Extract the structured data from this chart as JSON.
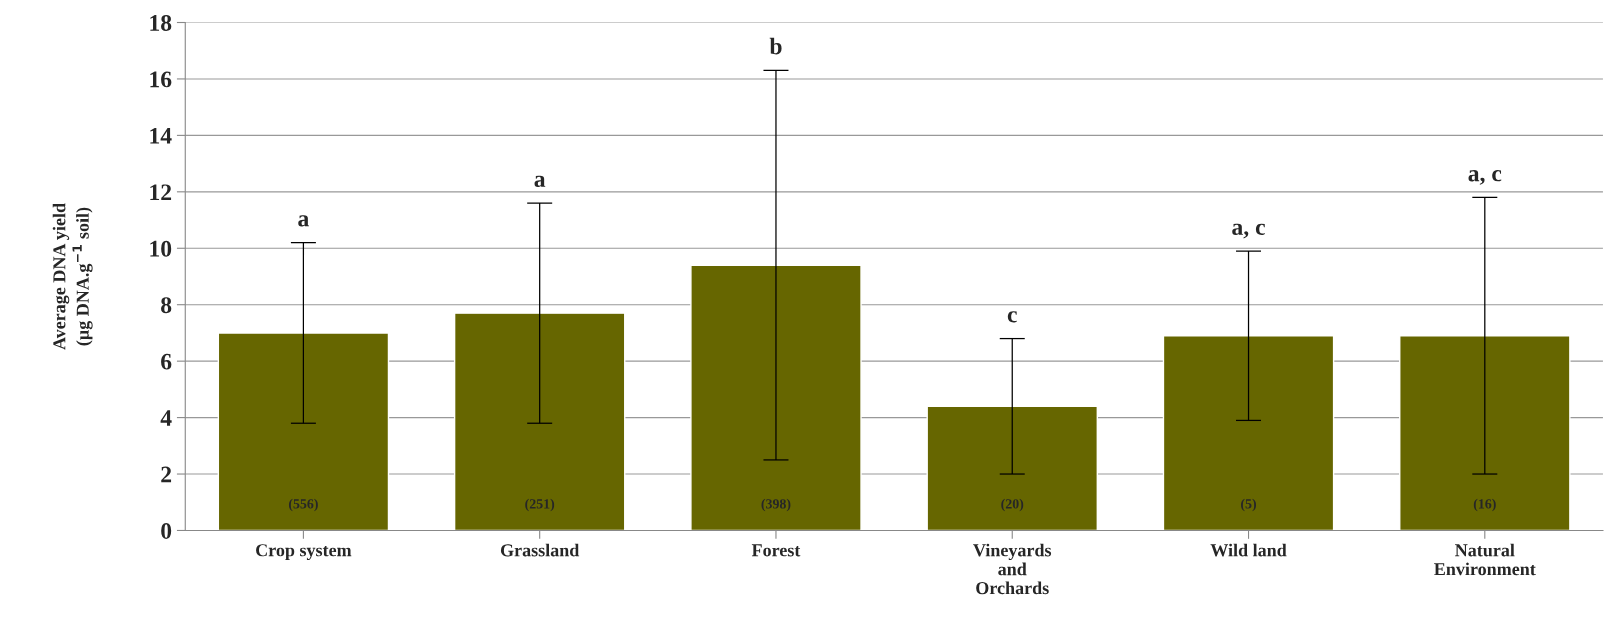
{
  "chart_data": {
    "type": "bar",
    "ylabel": "Average DNA yield\n(µg DNA.g$^{−1}$ soil)",
    "categories": [
      "Crop system",
      "Grassland",
      "Forest",
      "Vineyards\nand\nOrchards",
      "Wild land",
      "Natural\nEnvironment"
    ],
    "series": [
      {
        "color": "#666600",
        "values": [
          7.0,
          7.7,
          9.4,
          4.4,
          6.9,
          6.9
        ],
        "errors": [
          3.2,
          3.9,
          6.9,
          2.4,
          3.0,
          4.9
        ]
      }
    ],
    "ylim": [
      0,
      18
    ],
    "yticks": [
      0,
      2,
      4,
      6,
      8,
      10,
      12,
      14,
      16,
      18
    ],
    "grid": "y",
    "legend": false,
    "annotations": [
      {
        "text": "a",
        "x": "Crop system",
        "y": 10.2
      },
      {
        "text": "a",
        "x": "Grassland",
        "y": 11.6
      },
      {
        "text": "b",
        "x": "Forest",
        "y": 16.3
      },
      {
        "text": "c",
        "x": "Vineyards\nand\nOrchards",
        "y": 6.8
      },
      {
        "text": "a, c",
        "x": "Wild land",
        "y": 9.9
      },
      {
        "text": "a, c",
        "x": "Natural\nEnvironment",
        "y": 11.8
      },
      "(556)",
      "(251)",
      "(398)",
      "(20)",
      "(5)",
      "(16)"
    ]
  }
}
